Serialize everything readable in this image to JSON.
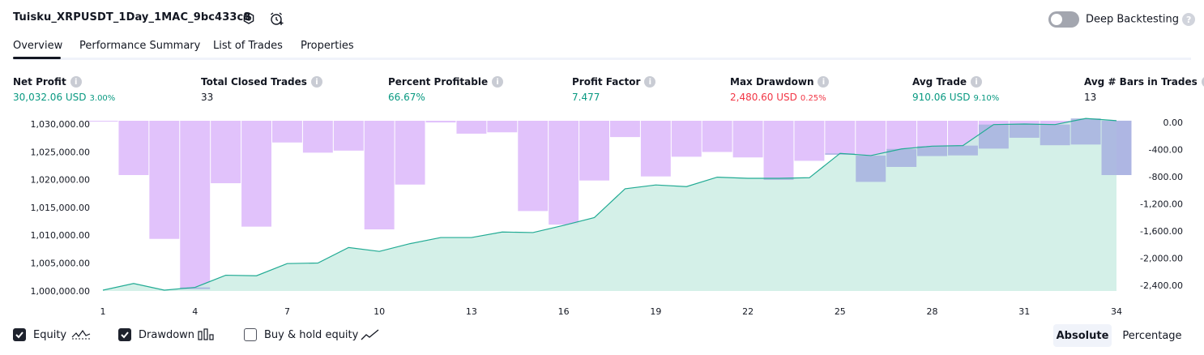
{
  "header": {
    "strategy_title": "Tuisku_XRPUSDT_1Day_1MAC_9bc433c8",
    "settings_icon": "settings-gear-icon",
    "alert_icon": "alarm-clock-add-icon",
    "deep_backtesting_label": "Deep Backtesting",
    "deep_backtesting_enabled": false,
    "help_icon_glyph": "?"
  },
  "tabs": [
    {
      "label": "Overview",
      "active": true
    },
    {
      "label": "Performance Summary",
      "active": false
    },
    {
      "label": "List of Trades",
      "active": false
    },
    {
      "label": "Properties",
      "active": false
    }
  ],
  "metrics": {
    "info_glyph": "i",
    "net_profit": {
      "label": "Net Profit",
      "value": "30,032.06 USD",
      "sub": "3.00%"
    },
    "total_closed_trades": {
      "label": "Total Closed Trades",
      "value": "33"
    },
    "percent_profitable": {
      "label": "Percent Profitable",
      "value": "66.67%"
    },
    "profit_factor": {
      "label": "Profit Factor",
      "value": "7.477"
    },
    "max_drawdown": {
      "label": "Max Drawdown",
      "value": "2,480.60 USD",
      "sub": "0.25%"
    },
    "avg_trade": {
      "label": "Avg Trade",
      "value": "910.06 USD",
      "sub": "9.10%"
    },
    "avg_bars": {
      "label": "Avg # Bars in Trades",
      "value": "13"
    }
  },
  "chart_data": {
    "type": "line+bar",
    "left_axis": {
      "ticks": [
        "1,030,000.00",
        "1,025,000.00",
        "1,020,000.00",
        "1,015,000.00",
        "1,010,000.00",
        "1,005,000.00",
        "1,000,000.00"
      ],
      "range": [
        999500,
        1031000
      ]
    },
    "right_axis": {
      "ticks": [
        "0.00",
        "-400.00",
        "-800.00",
        "-1,200.00",
        "-1,600.00",
        "-2,000.00",
        "-2,400.00"
      ],
      "range": [
        -2480,
        0
      ]
    },
    "x_ticks": [
      "1",
      "4",
      "7",
      "10",
      "13",
      "16",
      "19",
      "22",
      "25",
      "28",
      "31",
      "34"
    ],
    "x_range": [
      1,
      34
    ],
    "equity": [
      1000000,
      1001200,
      1000000,
      1000500,
      1002700,
      1002600,
      1004800,
      1004900,
      1007700,
      1007000,
      1008400,
      1009500,
      1009500,
      1010500,
      1010400,
      1011700,
      1013100,
      1018300,
      1019000,
      1018700,
      1020400,
      1020200,
      1020200,
      1020300,
      1024700,
      1024300,
      1025500,
      1026000,
      1026100,
      1029900,
      1030000,
      1029900,
      1031000,
      1030600
    ],
    "drawdown": [
      -10,
      -800,
      -1740,
      -2480,
      -920,
      -1560,
      -320,
      -470,
      -440,
      -1600,
      -940,
      -25,
      -190,
      -170,
      -1330,
      -1530,
      -880,
      -240,
      -820,
      -530,
      -460,
      -540,
      -870,
      -590,
      -500,
      -900,
      -680,
      -520,
      -510,
      -410,
      -250,
      -360,
      -350,
      -800
    ],
    "colors": {
      "equity_line": "#22ab94",
      "equity_fill": "#ccede4",
      "drawdown_bar": "#e1c2fb",
      "drawdown_overlap": "#a8b5e0"
    }
  },
  "legend": {
    "equity": {
      "label": "Equity",
      "checked": true
    },
    "drawdown": {
      "label": "Drawdown",
      "checked": true
    },
    "buy_hold": {
      "label": "Buy & hold equity",
      "checked": false
    },
    "mode_absolute": "Absolute",
    "mode_percentage": "Percentage",
    "active_mode": "Absolute"
  }
}
